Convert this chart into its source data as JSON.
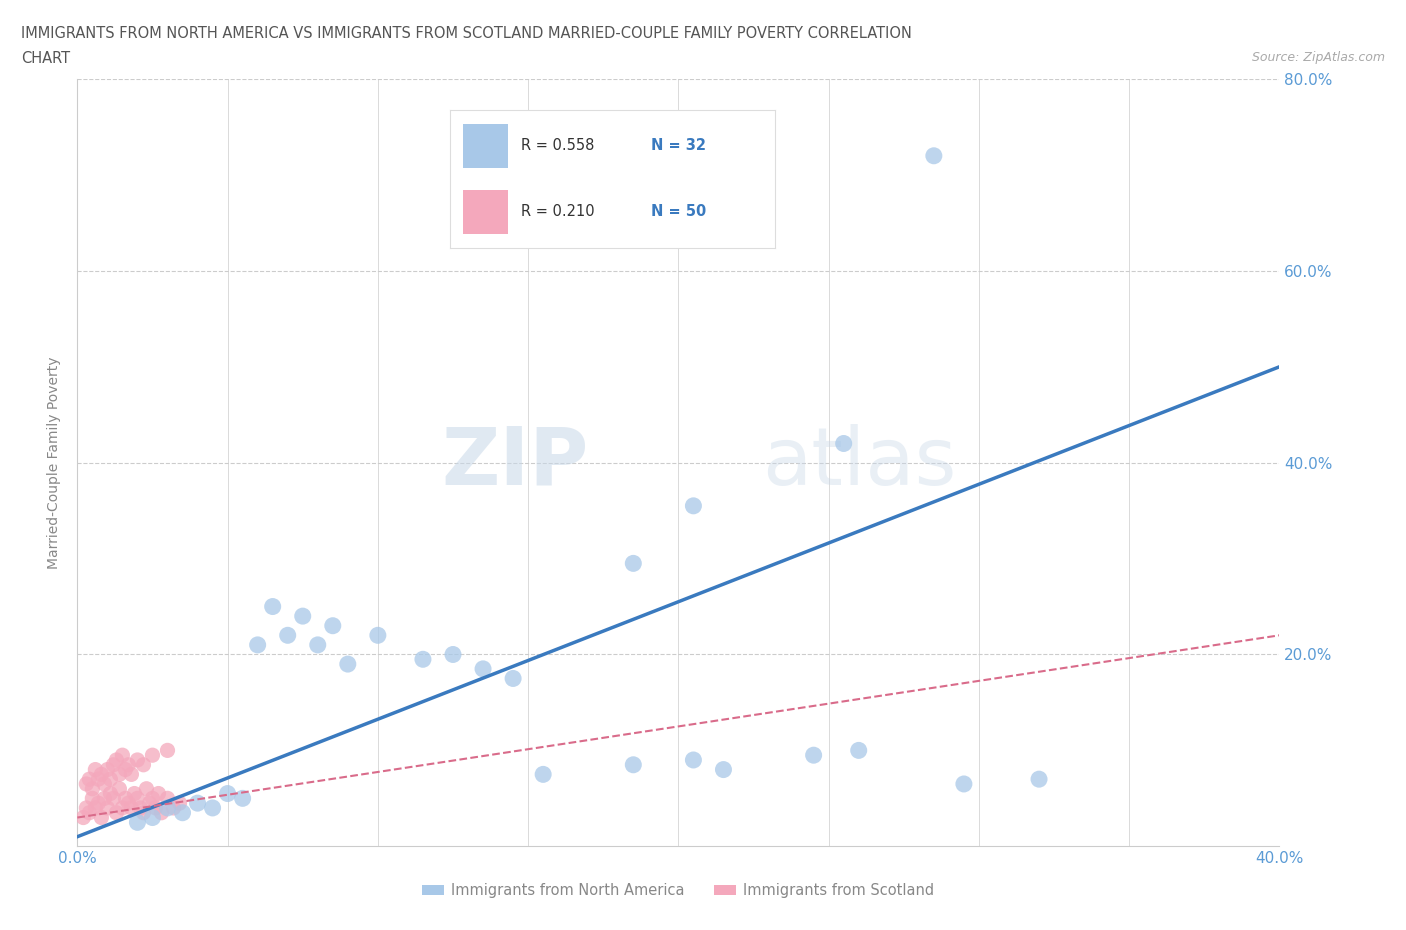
{
  "title_line1": "IMMIGRANTS FROM NORTH AMERICA VS IMMIGRANTS FROM SCOTLAND MARRIED-COUPLE FAMILY POVERTY CORRELATION",
  "title_line2": "CHART",
  "source": "Source: ZipAtlas.com",
  "ylabel": "Married-Couple Family Poverty",
  "xlim": [
    0.0,
    0.4
  ],
  "ylim": [
    0.0,
    0.8
  ],
  "blue_color": "#a8c8e8",
  "pink_color": "#f4a8bc",
  "blue_line_color": "#3a7abf",
  "pink_line_color": "#d96b8a",
  "R_blue": 0.558,
  "N_blue": 32,
  "R_pink": 0.21,
  "N_pink": 50,
  "legend_label_blue": "Immigrants from North America",
  "legend_label_pink": "Immigrants from Scotland",
  "watermark_zip": "ZIP",
  "watermark_atlas": "atlas",
  "grid_color": "#cccccc",
  "background_color": "#ffffff",
  "tick_label_color": "#5b9bd5",
  "title_color": "#555555",
  "blue_scatter_x": [
    0.155,
    0.185,
    0.205,
    0.215,
    0.245,
    0.26,
    0.295,
    0.32,
    0.09,
    0.1,
    0.115,
    0.125,
    0.135,
    0.145,
    0.06,
    0.065,
    0.07,
    0.075,
    0.08,
    0.085,
    0.02,
    0.025,
    0.03,
    0.035,
    0.04,
    0.045,
    0.05,
    0.055,
    0.185,
    0.205,
    0.255,
    0.285
  ],
  "blue_scatter_y": [
    0.075,
    0.085,
    0.09,
    0.08,
    0.095,
    0.1,
    0.065,
    0.07,
    0.19,
    0.22,
    0.195,
    0.2,
    0.185,
    0.175,
    0.21,
    0.25,
    0.22,
    0.24,
    0.21,
    0.23,
    0.025,
    0.03,
    0.04,
    0.035,
    0.045,
    0.04,
    0.055,
    0.05,
    0.295,
    0.355,
    0.42,
    0.72
  ],
  "pink_scatter_x": [
    0.002,
    0.003,
    0.004,
    0.005,
    0.006,
    0.007,
    0.008,
    0.009,
    0.01,
    0.011,
    0.012,
    0.013,
    0.014,
    0.015,
    0.016,
    0.017,
    0.018,
    0.019,
    0.02,
    0.021,
    0.022,
    0.023,
    0.024,
    0.025,
    0.026,
    0.027,
    0.028,
    0.03,
    0.032,
    0.034,
    0.003,
    0.004,
    0.005,
    0.006,
    0.007,
    0.008,
    0.009,
    0.01,
    0.011,
    0.012,
    0.013,
    0.014,
    0.015,
    0.016,
    0.017,
    0.018,
    0.02,
    0.022,
    0.025,
    0.03
  ],
  "pink_scatter_y": [
    0.03,
    0.04,
    0.035,
    0.05,
    0.04,
    0.045,
    0.03,
    0.05,
    0.04,
    0.055,
    0.05,
    0.035,
    0.06,
    0.04,
    0.05,
    0.045,
    0.04,
    0.055,
    0.05,
    0.04,
    0.035,
    0.06,
    0.045,
    0.05,
    0.04,
    0.055,
    0.035,
    0.05,
    0.04,
    0.045,
    0.065,
    0.07,
    0.06,
    0.08,
    0.07,
    0.075,
    0.065,
    0.08,
    0.07,
    0.085,
    0.09,
    0.075,
    0.095,
    0.08,
    0.085,
    0.075,
    0.09,
    0.085,
    0.095,
    0.1
  ]
}
